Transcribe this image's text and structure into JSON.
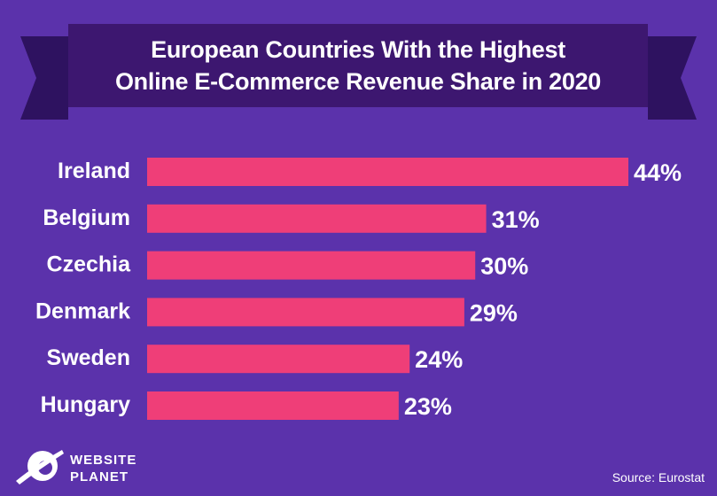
{
  "chart_data": {
    "type": "bar",
    "orientation": "horizontal",
    "title": "European Countries With the Highest Online E-Commerce Revenue Share in 2020",
    "title_lines": [
      "European Countries With the Highest",
      "Online E-Commerce Revenue Share in 2020"
    ],
    "categories": [
      "Ireland",
      "Belgium",
      "Czechia",
      "Denmark",
      "Sweden",
      "Hungary"
    ],
    "values": [
      44,
      31,
      30,
      29,
      24,
      23
    ],
    "labels": [
      "44%",
      "31%",
      "30%",
      "29%",
      "24%",
      "23%"
    ],
    "unit": "%",
    "xlabel": "",
    "ylabel": "",
    "xlim": [
      0,
      44
    ],
    "grid": false,
    "colors": {
      "background": "#5b32ab",
      "banner": "#3d1770",
      "ribbon": "#2e1260",
      "bar": "#ef3e78",
      "text": "#ffffff"
    }
  },
  "source": "Source: Eurostat",
  "logo": {
    "line1": "WEBSITE",
    "line2": "PLANET"
  }
}
